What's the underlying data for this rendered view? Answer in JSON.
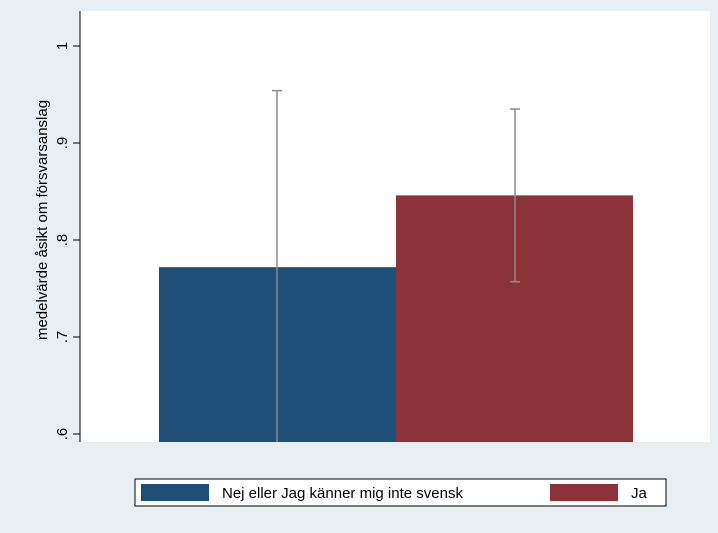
{
  "chart_data": {
    "type": "bar",
    "title": "",
    "xlabel": "",
    "ylabel": "medelvärde åsikt om försvarsanslag",
    "ylim": [
      0.6,
      1.0
    ],
    "y_ticks": [
      ".6",
      ".7",
      ".8",
      ".9",
      "1"
    ],
    "y_tick_values": [
      0.6,
      0.7,
      0.8,
      0.9,
      1.0
    ],
    "grid": false,
    "legend_position": "bottom",
    "series": [
      {
        "name": "Nej eller Jag känner mig inte svensk",
        "value": 0.772,
        "ci_low": 0.59,
        "ci_high": 0.954,
        "color": "#1f4e79"
      },
      {
        "name": "Ja",
        "value": 0.846,
        "ci_low": 0.757,
        "ci_high": 0.935,
        "color": "#8b3339"
      }
    ],
    "colors": {
      "background": "#e8eef2",
      "plot_area": "#ffffff",
      "error_bar": "#8c8c8c"
    }
  }
}
